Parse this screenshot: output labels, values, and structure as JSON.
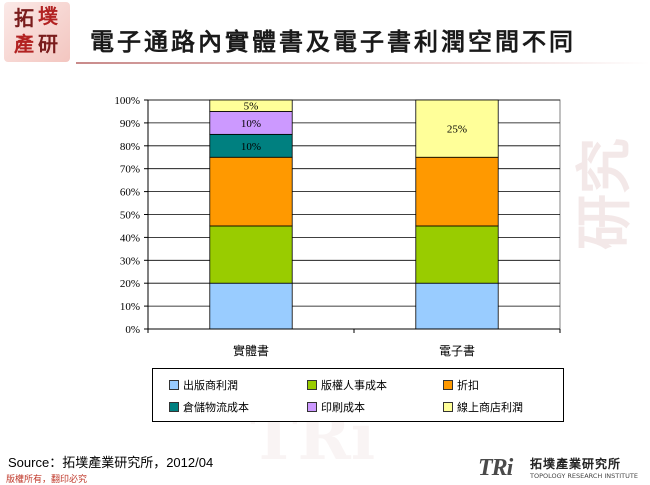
{
  "header": {
    "logo_chars": [
      "拓",
      "墣",
      "產",
      "研"
    ],
    "title": "電子通路內實體書及電子書利潤空間不同"
  },
  "chart_data": {
    "type": "bar",
    "stacked": true,
    "categories": [
      "實體書",
      "電子書"
    ],
    "series": [
      {
        "name": "出版商利潤",
        "color": "#99ccff",
        "values": [
          20,
          20
        ]
      },
      {
        "name": "版權人事成本",
        "color": "#99cc00",
        "values": [
          25,
          25
        ]
      },
      {
        "name": "折扣",
        "color": "#ff9900",
        "values": [
          30,
          30
        ]
      },
      {
        "name": "倉儲物流成本",
        "color": "#008080",
        "values": [
          10,
          0
        ]
      },
      {
        "name": "印刷成本",
        "color": "#cc99ff",
        "values": [
          10,
          0
        ]
      },
      {
        "name": "線上商店利潤",
        "color": "#ffff99",
        "values": [
          5,
          25
        ]
      }
    ],
    "data_labels": [
      {
        "category": "實體書",
        "series": "倉儲物流成本",
        "text": "10%"
      },
      {
        "category": "實體書",
        "series": "印刷成本",
        "text": "10%"
      },
      {
        "category": "實體書",
        "series": "線上商店利潤",
        "text": "5%"
      },
      {
        "category": "電子書",
        "series": "線上商店利潤",
        "text": "25%"
      }
    ],
    "ylim": [
      0,
      100
    ],
    "yticks": [
      "0%",
      "10%",
      "20%",
      "30%",
      "40%",
      "50%",
      "60%",
      "70%",
      "80%",
      "90%",
      "100%"
    ],
    "grid": true,
    "legend_position": "bottom"
  },
  "source": "Source：拓墣產業研究所，2012/04",
  "copyright": "版權所有，翻印必究",
  "footer_logo": {
    "mark": "TRi",
    "name_cn": "拓墣產業研究所",
    "name_en": "TOPOLOGY RESEARCH INSTITUTE"
  },
  "watermark": {
    "large": "研究",
    "small": "TRi"
  }
}
